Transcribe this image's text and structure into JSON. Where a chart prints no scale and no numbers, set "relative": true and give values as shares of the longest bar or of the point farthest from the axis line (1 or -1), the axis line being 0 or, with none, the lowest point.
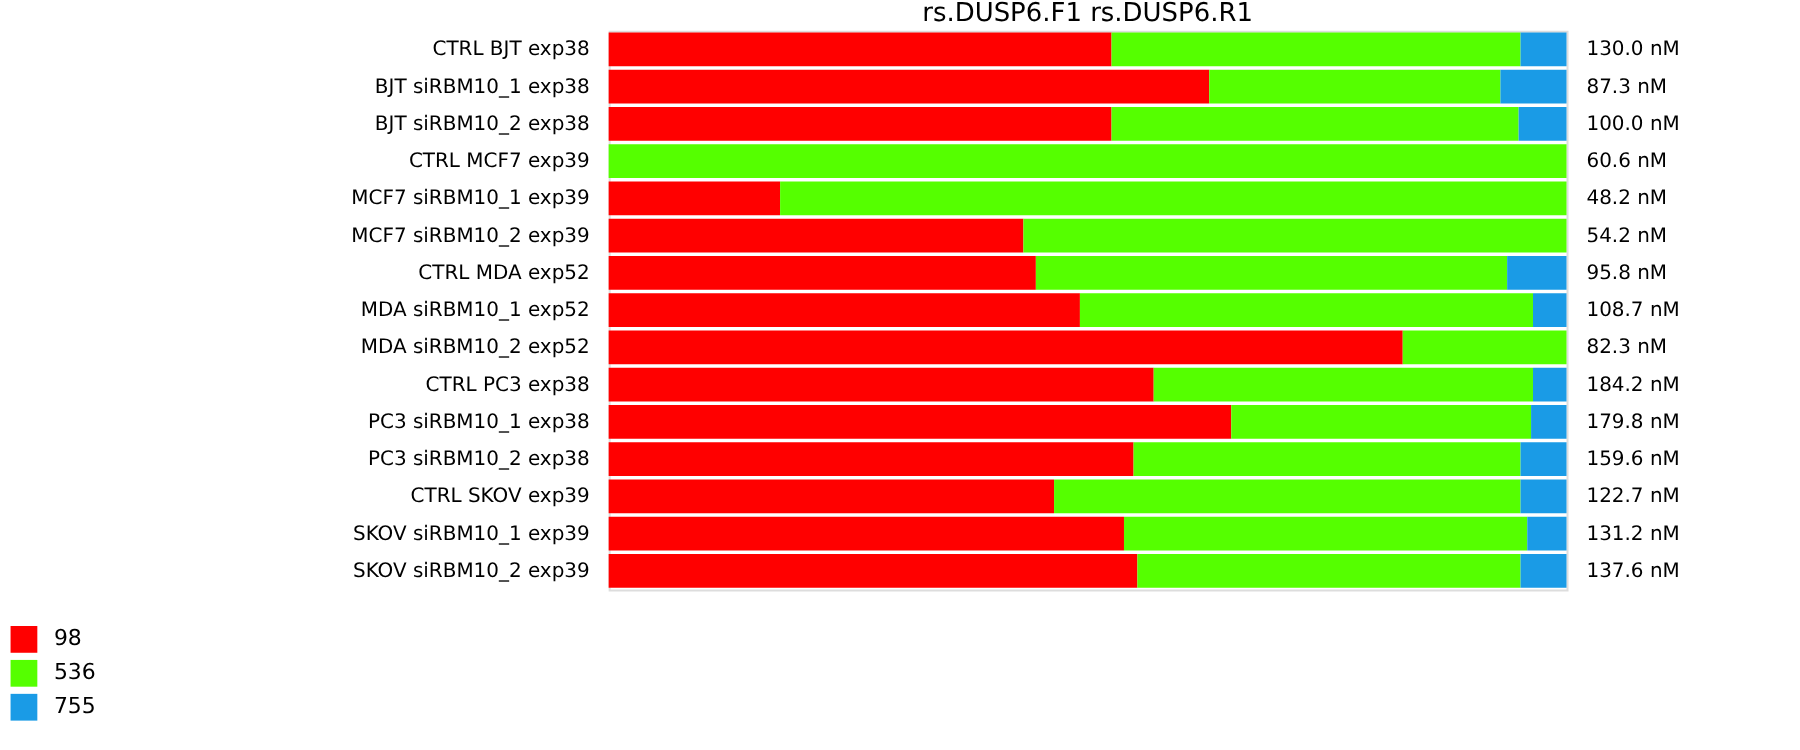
{
  "chart_data": {
    "type": "bar",
    "orientation": "horizontal",
    "stacked": true,
    "relative": true,
    "title": "rs.DUSP6.F1  rs.DUSP6.R1",
    "categories": [
      "CTRL BJT  exp38",
      "BJT siRBM10_1  exp38",
      "BJT siRBM10_2  exp38",
      "CTRL MCF7  exp39",
      "MCF7 siRBM10_1  exp39",
      "MCF7 siRBM10_2  exp39",
      "CTRL MDA  exp52",
      "MDA  siRBM10_1 exp52",
      "MDA  siRBM10_2 exp52",
      "CTRL PC3  exp38",
      "PC3  siRBM10_1 exp38",
      "PC3  siRBM10_2 exp38",
      "CTRL SKOV  exp39",
      "SKOV siRBM10_1 exp39",
      "SKOV siRBM10_2 exp39"
    ],
    "series": [
      {
        "name": "98",
        "color": "#ff0000",
        "values": [
          0.525,
          0.627,
          0.525,
          null,
          0.179,
          0.433,
          0.446,
          0.492,
          0.829,
          0.569,
          0.65,
          0.548,
          0.465,
          0.538,
          0.552
        ]
      },
      {
        "name": "536",
        "color": "#55ff00",
        "values": [
          0.427,
          0.304,
          0.425,
          1.0,
          0.821,
          0.567,
          0.492,
          0.473,
          0.171,
          0.396,
          0.313,
          0.404,
          0.487,
          0.421,
          0.4
        ]
      },
      {
        "name": "755",
        "color": "#1a9be6",
        "values": [
          0.048,
          0.069,
          0.05,
          null,
          null,
          null,
          0.062,
          0.035,
          null,
          0.035,
          0.037,
          0.048,
          0.048,
          0.041,
          0.048
        ]
      }
    ],
    "annotations": [
      "130.0 nM",
      "87.3 nM",
      "100.0 nM",
      "60.6 nM",
      "48.2 nM",
      "54.2 nM",
      "95.8 nM",
      "108.7 nM",
      "82.3 nM",
      "184.2 nM",
      "179.8 nM",
      "159.6 nM",
      "122.7 nM",
      "131.2 nM",
      "137.6 nM"
    ],
    "legend": "bottom left"
  }
}
